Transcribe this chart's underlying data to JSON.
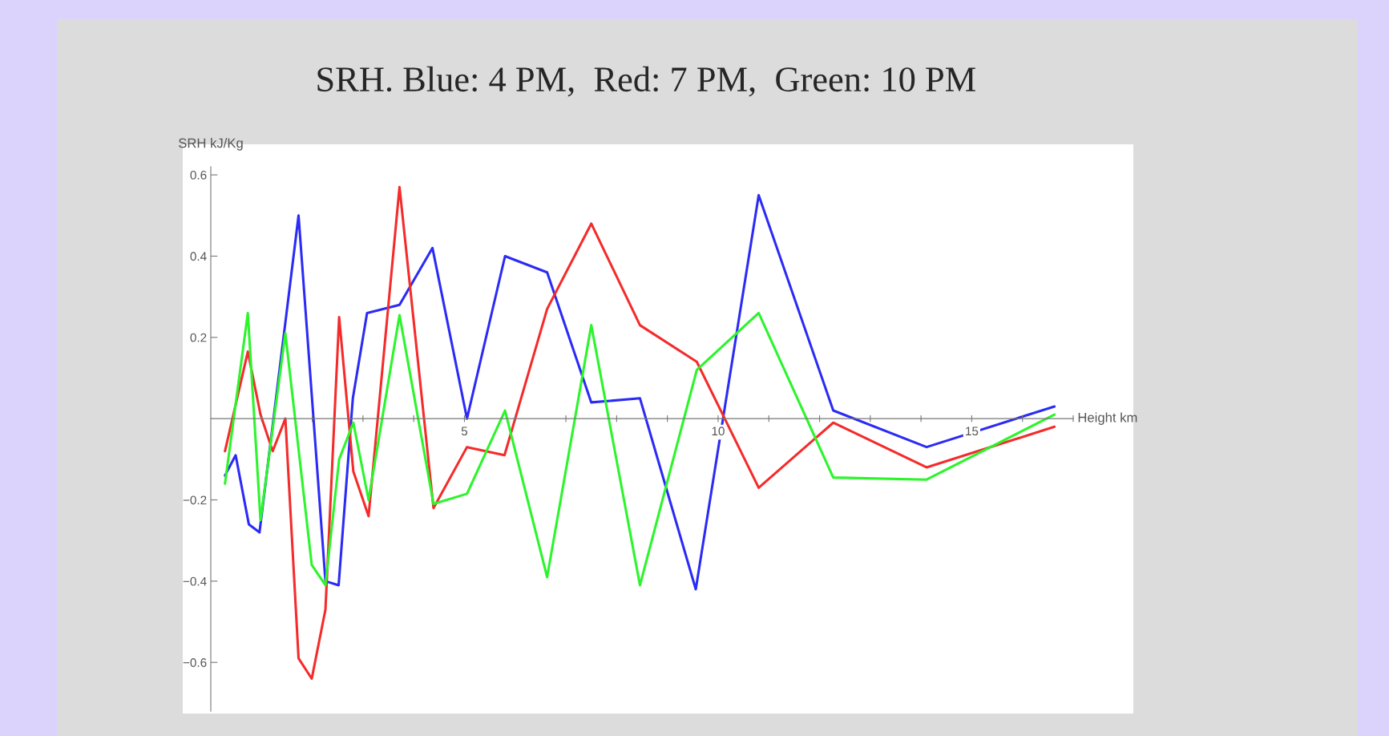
{
  "chart_data": {
    "type": "line",
    "title": "SRH. Blue: 4 PM,  Red: 7 PM,  Green: 10 PM",
    "xlabel": "Height km",
    "ylabel": "SRH kJ/Kg",
    "xlim": [
      0,
      17.0
    ],
    "ylim": [
      -0.72,
      0.62
    ],
    "xticks": [
      {
        "value": 1,
        "label": null
      },
      {
        "value": 2,
        "label": null
      },
      {
        "value": 3,
        "label": null
      },
      {
        "value": 4,
        "label": null
      },
      5,
      {
        "value": 6,
        "label": null
      },
      {
        "value": 7,
        "label": null
      },
      {
        "value": 8,
        "label": null
      },
      {
        "value": 9,
        "label": null
      },
      10,
      {
        "value": 11,
        "label": null
      },
      {
        "value": 12,
        "label": null
      },
      {
        "value": 13,
        "label": null
      },
      {
        "value": 14,
        "label": null
      },
      15,
      {
        "value": 16,
        "label": null
      },
      {
        "value": 17,
        "label": null
      }
    ],
    "yticks": [
      -0.6,
      -0.4,
      -0.2,
      0.2,
      0.4,
      0.6
    ],
    "grid": false,
    "legend": false,
    "marker": "none",
    "line_style": "solid",
    "series": [
      {
        "color": "#2b2bf5",
        "x": [
          0.28,
          0.49,
          0.75,
          0.96,
          1.73,
          2.26,
          2.52,
          2.8,
          3.08,
          3.72,
          4.37,
          5.05,
          5.8,
          6.63,
          7.5,
          8.46,
          9.56,
          10.8,
          12.27,
          14.11,
          16.63
        ],
        "values": [
          -0.14,
          -0.09,
          -0.26,
          -0.28,
          0.5,
          -0.4,
          -0.41,
          0.05,
          0.26,
          0.28,
          0.42,
          0.0,
          0.4,
          0.36,
          0.04,
          0.05,
          -0.42,
          0.55,
          0.02,
          -0.07,
          0.03
        ]
      },
      {
        "color": "#f52b2b",
        "x": [
          0.28,
          0.73,
          0.98,
          1.22,
          1.47,
          1.73,
          1.99,
          2.26,
          2.53,
          2.81,
          3.11,
          3.72,
          4.39,
          5.05,
          5.79,
          6.63,
          7.5,
          8.46,
          9.58,
          10.8,
          12.27,
          14.11,
          16.63
        ],
        "values": [
          -0.08,
          0.165,
          0.01,
          -0.08,
          0.0,
          -0.59,
          -0.64,
          -0.47,
          0.25,
          -0.13,
          -0.24,
          0.57,
          -0.22,
          -0.07,
          -0.09,
          0.27,
          0.48,
          0.23,
          0.14,
          -0.17,
          -0.01,
          -0.12,
          -0.02
        ]
      },
      {
        "color": "#2bf52b",
        "x": [
          0.28,
          0.73,
          0.98,
          1.47,
          1.99,
          2.26,
          2.53,
          2.81,
          3.11,
          3.72,
          4.39,
          5.05,
          5.8,
          6.63,
          7.5,
          8.46,
          9.58,
          10.8,
          12.27,
          14.11,
          16.63
        ],
        "values": [
          -0.16,
          0.26,
          -0.25,
          0.21,
          -0.36,
          -0.41,
          -0.1,
          -0.01,
          -0.2,
          0.255,
          -0.21,
          -0.185,
          0.02,
          -0.39,
          0.23,
          -0.41,
          0.12,
          0.26,
          -0.145,
          -0.15,
          0.01
        ]
      }
    ]
  }
}
